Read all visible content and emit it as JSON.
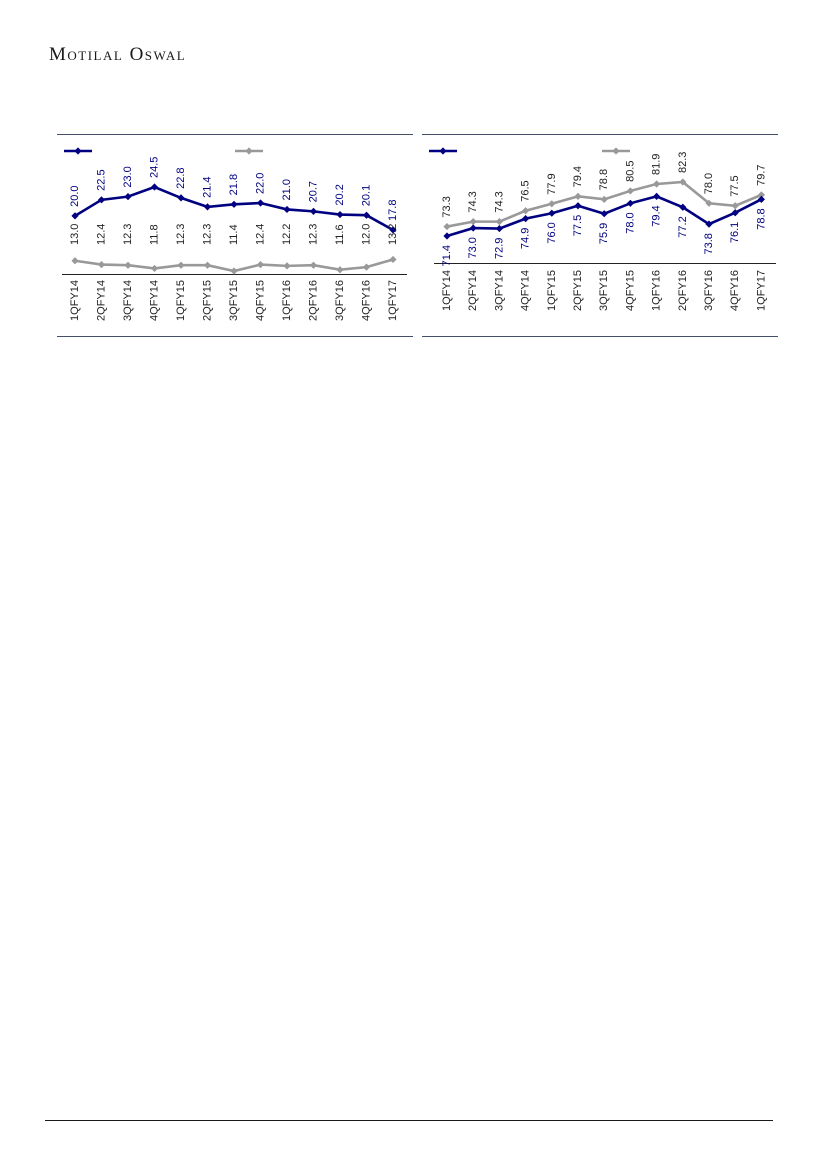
{
  "brand": "Motilal Oswal",
  "colors": {
    "primary": "#000080",
    "secondary": "#999999",
    "rule": "#44506a",
    "label_secondary": "#222222"
  },
  "chart_data": [
    {
      "type": "line",
      "categories": [
        "1QFY14",
        "2QFY14",
        "3QFY14",
        "4QFY14",
        "1QFY15",
        "2QFY15",
        "3QFY15",
        "4QFY15",
        "1QFY16",
        "2QFY16",
        "3QFY16",
        "4QFY16",
        "1QFY17"
      ],
      "series": [
        {
          "values": [
            20.0,
            22.5,
            23.0,
            24.5,
            22.8,
            21.4,
            21.8,
            22.0,
            21.0,
            20.7,
            20.2,
            20.1,
            17.8
          ]
        },
        {
          "values": [
            13.0,
            12.4,
            12.3,
            11.8,
            12.3,
            12.3,
            11.4,
            12.4,
            12.2,
            12.3,
            11.6,
            12.0,
            13.2
          ]
        }
      ],
      "legend": "top",
      "labels": [
        "20.0",
        "22.5",
        "23.0",
        "24.5",
        "22.8",
        "21.4",
        "21.8",
        "22.0",
        "21.0",
        "20.7",
        "20.2",
        "20.1",
        "17.8",
        "13.0",
        "12.4",
        "12.3",
        "11.8",
        "12.3",
        "12.3",
        "11.4",
        "12.4",
        "12.2",
        "12.3",
        "11.6",
        "12.0",
        "13.2"
      ]
    },
    {
      "type": "line",
      "categories": [
        "1QFY14",
        "2QFY14",
        "3QFY14",
        "4QFY14",
        "1QFY15",
        "2QFY15",
        "3QFY15",
        "4QFY15",
        "1QFY16",
        "2QFY16",
        "3QFY16",
        "4QFY16",
        "1QFY17"
      ],
      "series": [
        {
          "values": [
            71.4,
            73.0,
            72.9,
            74.9,
            76.0,
            77.5,
            75.9,
            78.0,
            79.4,
            77.2,
            73.8,
            76.1,
            78.8
          ]
        },
        {
          "values": [
            73.3,
            74.3,
            74.3,
            76.5,
            77.9,
            79.4,
            78.8,
            80.5,
            81.9,
            82.3,
            78.0,
            77.5,
            79.7
          ]
        }
      ],
      "legend": "top",
      "labels": [
        "71.4",
        "73.0",
        "72.9",
        "74.9",
        "76.0",
        "77.5",
        "75.9",
        "78.0",
        "79.4",
        "77.2",
        "73.8",
        "76.1",
        "78.8",
        "73.3",
        "74.3",
        "74.3",
        "76.5",
        "77.9",
        "79.4",
        "78.8",
        "80.5",
        "81.9",
        "82.3",
        "78.0",
        "77.5",
        "79.7"
      ]
    }
  ]
}
